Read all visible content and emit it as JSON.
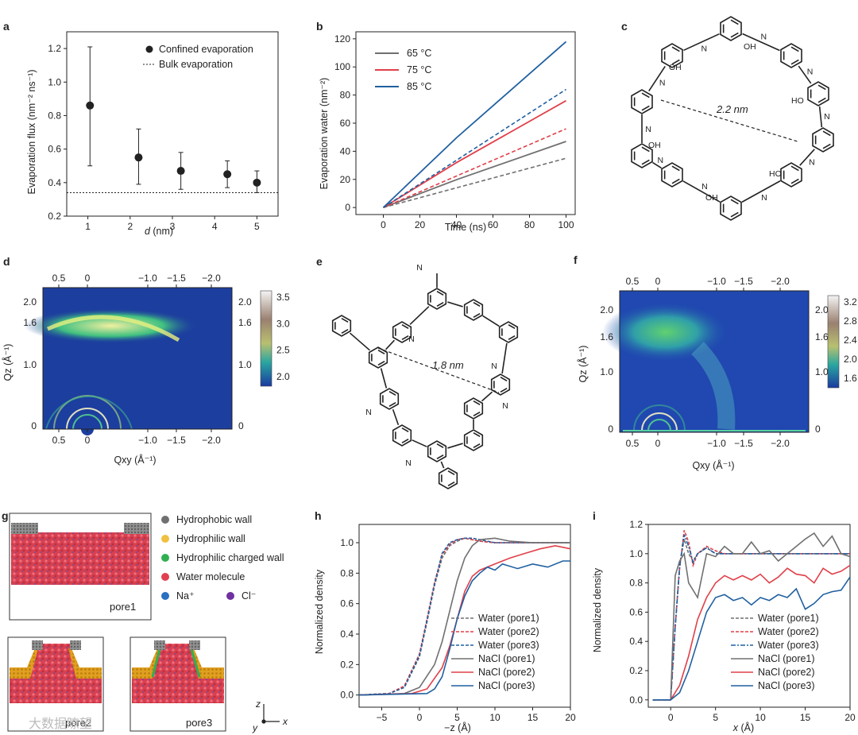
{
  "panels": {
    "a": {
      "label": "a",
      "legend": [
        "Confined evaporation",
        "Bulk evaporation"
      ],
      "xlabel_var": "d",
      "xlabel_unit": " (nm)",
      "ylabel": "Evaporation flux (nm⁻² ns⁻¹)"
    },
    "b": {
      "label": "b",
      "legend": [
        "65 °C",
        "75 °C",
        "85 °C"
      ],
      "xlabel": "Time (ns)",
      "ylabel": "Evaporation water (nm⁻²)"
    },
    "c": {
      "label": "c",
      "distance": "2.2 nm",
      "oh": "OH",
      "ho": "HO",
      "n": "N"
    },
    "d": {
      "label": "d",
      "xlabel": "Qxy (Å⁻¹)",
      "ylabel": "Qz (Å⁻¹)",
      "top_ticks": [
        "0.5",
        "0",
        "−1.0",
        "−1.5",
        "−2.0"
      ],
      "bottom_ticks": [
        "0.5",
        "0",
        "−1.0",
        "−1.5",
        "−2.0"
      ],
      "left_ticks": [
        "2.0",
        "1.6",
        "1.0",
        "0"
      ],
      "right_ticks": [
        "2.0",
        "1.6",
        "1.0",
        "0"
      ],
      "colorbar_ticks": [
        "3.5",
        "3.0",
        "2.5",
        "2.0"
      ]
    },
    "e": {
      "label": "e",
      "distance": "1.8 nm",
      "n": "N"
    },
    "f": {
      "label": "f",
      "xlabel": "Qxy (Å⁻¹)",
      "ylabel": "Qz (Å⁻¹)",
      "top_ticks": [
        "0.5",
        "0",
        "−1.0",
        "−1.5",
        "−2.0"
      ],
      "bottom_ticks": [
        "0.5",
        "0",
        "−1.0",
        "−1.5",
        "−2.0"
      ],
      "left_ticks": [
        "2.0",
        "1.6",
        "1.0",
        "0"
      ],
      "right_ticks": [
        "2.0",
        "1.6",
        "1.0",
        "0"
      ],
      "colorbar_ticks": [
        "3.2",
        "2.8",
        "2.4",
        "2.0",
        "1.6"
      ]
    },
    "g": {
      "label": "g",
      "legend": [
        "Hydrophobic wall",
        "Hydrophilic wall",
        "Hydrophilic charged wall",
        "Water molecule",
        "Na⁺",
        "Cl⁻"
      ],
      "pores": [
        "pore1",
        "pore2",
        "pore3"
      ],
      "axes": [
        "z",
        "y",
        "x"
      ]
    },
    "h": {
      "label": "h",
      "xlabel": "−z (Å)",
      "ylabel": "Normalized density",
      "legend": [
        "Water (pore1)",
        "Water (pore2)",
        "Water (pore3)",
        "NaCl (pore1)",
        "NaCl (pore2)",
        "NaCl (pore3)"
      ]
    },
    "i": {
      "label": "i",
      "xlabel": "x (Å)",
      "ylabel": "Normalized density",
      "legend": [
        "Water (pore1)",
        "Water (pore2)",
        "Water (pore3)",
        "NaCl (pore1)",
        "NaCl (pore2)",
        "NaCl (pore3)"
      ]
    }
  },
  "watermark": "大数据瞭望",
  "colors": {
    "gray": "#707070",
    "red": "#e0404a",
    "blue": "#2060a0",
    "heat_bg": "#1c3e9e"
  },
  "chart_data": [
    {
      "type": "scatter",
      "panel": "a",
      "xlim": [
        0.5,
        5.5
      ],
      "ylim": [
        0.2,
        1.3
      ],
      "xticks": [
        1,
        2,
        3,
        4,
        5
      ],
      "yticks": [
        0.2,
        0.4,
        0.6,
        0.8,
        1.0,
        1.2
      ],
      "x": [
        1.05,
        2.2,
        3.2,
        4.3,
        5.0
      ],
      "y": [
        0.86,
        0.55,
        0.47,
        0.45,
        0.4
      ],
      "yerr_low": [
        0.5,
        0.39,
        0.36,
        0.37,
        0.34
      ],
      "yerr_high": [
        1.21,
        0.72,
        0.58,
        0.53,
        0.47
      ],
      "bulk": 0.34
    },
    {
      "type": "line",
      "panel": "b",
      "xlim": [
        -15,
        105
      ],
      "ylim": [
        -5,
        125
      ],
      "xticks": [
        0,
        20,
        40,
        60,
        80,
        100
      ],
      "yticks": [
        0,
        20,
        40,
        60,
        80,
        100,
        120
      ],
      "series": [
        {
          "name": "65 °C",
          "solid_end": 47,
          "dashed_end": 35
        },
        {
          "name": "75 °C",
          "solid_end": 76,
          "dashed_end": 56
        },
        {
          "name": "85 °C",
          "solid_end": 118,
          "dashed_end": 84
        }
      ]
    },
    {
      "type": "line",
      "panel": "h",
      "xlim": [
        -8,
        20
      ],
      "ylim": [
        -0.08,
        1.12
      ],
      "xticks": [
        -5,
        0,
        5,
        10,
        15,
        20
      ],
      "yticks": [
        0,
        0.2,
        0.4,
        0.6,
        0.8,
        1.0
      ],
      "series": [
        {
          "name": "Water (pore1)",
          "x": [
            -8,
            -4,
            -2,
            0,
            1,
            2,
            3,
            4,
            5,
            6,
            7,
            8,
            10,
            12,
            15,
            20
          ],
          "y": [
            0,
            0.01,
            0.05,
            0.25,
            0.48,
            0.72,
            0.9,
            0.98,
            1.01,
            1.03,
            1.02,
            1.01,
            1.0,
            1.0,
            1.0,
            1.0
          ]
        },
        {
          "name": "Water (pore2)",
          "x": [
            -8,
            -4,
            -2,
            0,
            1,
            2,
            3,
            4,
            5,
            6,
            7,
            8,
            10,
            12,
            15,
            20
          ],
          "y": [
            0,
            0.01,
            0.06,
            0.27,
            0.5,
            0.74,
            0.92,
            0.99,
            1.02,
            1.03,
            1.02,
            1.01,
            1.0,
            1.0,
            1.0,
            1.0
          ]
        },
        {
          "name": "Water (pore3)",
          "x": [
            -8,
            -4,
            -2,
            0,
            1,
            2,
            3,
            4,
            5,
            6,
            7,
            8,
            10,
            12,
            15,
            20
          ],
          "y": [
            0,
            0.01,
            0.05,
            0.26,
            0.49,
            0.73,
            0.93,
            1.0,
            1.02,
            1.03,
            1.03,
            1.02,
            1.0,
            1.0,
            1.0,
            1.0
          ]
        },
        {
          "name": "NaCl (pore1)",
          "x": [
            -8,
            -2,
            0,
            2,
            3,
            4,
            5,
            6,
            7,
            8,
            10,
            12,
            15,
            20
          ],
          "y": [
            0,
            0.01,
            0.05,
            0.2,
            0.35,
            0.55,
            0.75,
            0.9,
            0.98,
            1.02,
            1.03,
            1.01,
            1.0,
            1.0
          ]
        },
        {
          "name": "NaCl (pore2)",
          "x": [
            -8,
            -1,
            1,
            3,
            4,
            5,
            6,
            7,
            8,
            10,
            12,
            14,
            16,
            18,
            20
          ],
          "y": [
            0,
            0.01,
            0.04,
            0.18,
            0.32,
            0.5,
            0.68,
            0.78,
            0.82,
            0.86,
            0.9,
            0.93,
            0.96,
            0.98,
            0.96
          ]
        },
        {
          "name": "NaCl (pore3)",
          "x": [
            -8,
            1,
            2,
            3,
            4,
            5,
            6,
            7,
            8,
            9,
            10,
            11,
            13,
            15,
            17,
            19,
            20
          ],
          "y": [
            0,
            0.01,
            0.04,
            0.12,
            0.3,
            0.5,
            0.65,
            0.75,
            0.8,
            0.84,
            0.82,
            0.86,
            0.83,
            0.86,
            0.84,
            0.88,
            0.88
          ]
        }
      ]
    },
    {
      "type": "line",
      "panel": "i",
      "xlim": [
        -2.5,
        20
      ],
      "ylim": [
        -0.05,
        1.2
      ],
      "xticks": [
        0,
        5,
        10,
        15,
        20
      ],
      "yticks": [
        0,
        0.2,
        0.4,
        0.6,
        0.8,
        1.0,
        1.2
      ],
      "series": [
        {
          "name": "Water (pore1)",
          "x": [
            -2,
            0,
            0.5,
            1,
            1.5,
            2,
            2.5,
            3,
            4,
            5,
            6,
            8,
            10,
            15,
            20
          ],
          "y": [
            0,
            0,
            0.5,
            0.92,
            1.1,
            1.0,
            0.95,
            1.0,
            1.04,
            1.0,
            1.0,
            1.0,
            1.0,
            1.0,
            1.0
          ]
        },
        {
          "name": "Water (pore2)",
          "x": [
            -2,
            0,
            0.5,
            1,
            1.5,
            2,
            2.5,
            3,
            4,
            5,
            6,
            8,
            10,
            15,
            20
          ],
          "y": [
            0,
            0,
            0.5,
            0.9,
            1.16,
            1.08,
            0.92,
            1.0,
            1.05,
            1.02,
            1.0,
            1.0,
            1.0,
            1.0,
            1.0
          ]
        },
        {
          "name": "Water (pore3)",
          "x": [
            -2,
            0,
            0.5,
            1,
            1.5,
            2,
            2.5,
            3,
            4,
            5,
            6,
            8,
            10,
            15,
            20
          ],
          "y": [
            0,
            0,
            0.5,
            0.91,
            1.13,
            1.05,
            0.94,
            1.0,
            1.04,
            1.0,
            1.0,
            1.0,
            1.0,
            1.0,
            1.0
          ]
        },
        {
          "name": "NaCl (pore1)",
          "x": [
            -2,
            0,
            0.5,
            1,
            1.5,
            2,
            3,
            4,
            5,
            6,
            7,
            8,
            9,
            10,
            11,
            12,
            13,
            14,
            15,
            16,
            17,
            18,
            19,
            20
          ],
          "y": [
            0,
            0,
            0.85,
            0.95,
            1.0,
            0.8,
            0.7,
            1.0,
            0.98,
            1.05,
            1.0,
            1.0,
            1.08,
            1.0,
            1.02,
            0.95,
            1.0,
            1.05,
            1.1,
            1.14,
            1.05,
            1.12,
            1.0,
            0.98
          ]
        },
        {
          "name": "NaCl (pore2)",
          "x": [
            -2,
            0,
            1,
            2,
            3,
            4,
            5,
            6,
            7,
            8,
            9,
            10,
            11,
            12,
            13,
            14,
            15,
            16,
            17,
            18,
            19,
            20
          ],
          "y": [
            0,
            0,
            0.1,
            0.3,
            0.55,
            0.7,
            0.8,
            0.85,
            0.82,
            0.85,
            0.82,
            0.86,
            0.8,
            0.84,
            0.9,
            0.86,
            0.85,
            0.8,
            0.9,
            0.86,
            0.88,
            0.92
          ]
        },
        {
          "name": "NaCl (pore3)",
          "x": [
            -2,
            0,
            1,
            2,
            3,
            4,
            5,
            6,
            7,
            8,
            9,
            10,
            11,
            12,
            13,
            14,
            15,
            16,
            17,
            18,
            19,
            20
          ],
          "y": [
            0,
            0,
            0.05,
            0.2,
            0.4,
            0.6,
            0.7,
            0.72,
            0.68,
            0.7,
            0.65,
            0.7,
            0.68,
            0.72,
            0.7,
            0.76,
            0.62,
            0.66,
            0.72,
            0.74,
            0.75,
            0.84
          ]
        }
      ]
    }
  ]
}
